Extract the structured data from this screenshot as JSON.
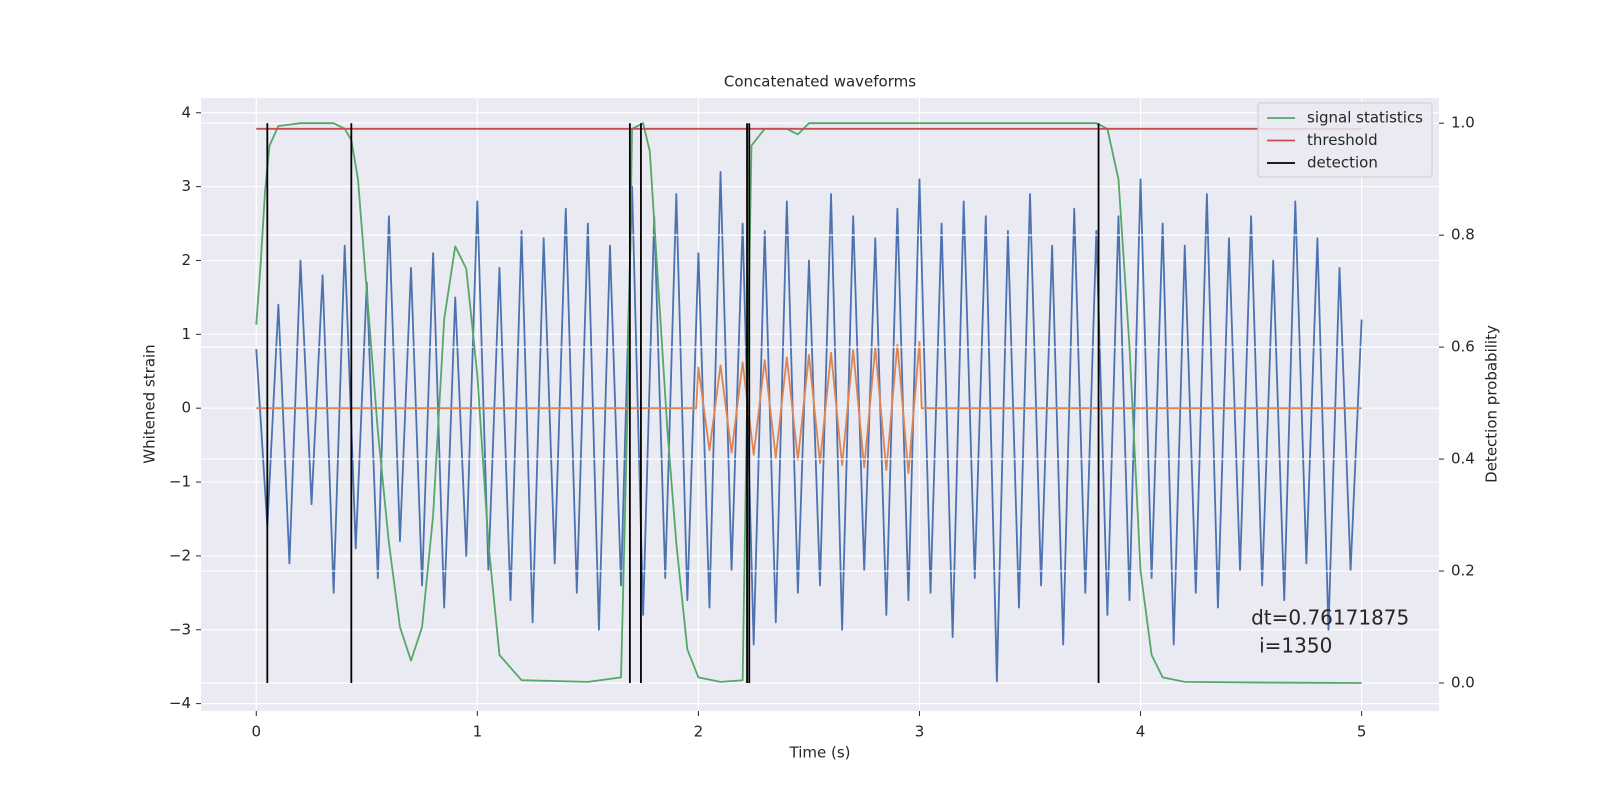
{
  "chart_data": {
    "type": "line",
    "title": "Concatenated waveforms",
    "xlabel": "Time (s)",
    "ylabel": "Whitened strain",
    "y2label": "Detection probability",
    "xlim": [
      -0.25,
      5.35
    ],
    "ylim": [
      -4.1,
      4.2
    ],
    "y2lim": [
      -0.05,
      1.045
    ],
    "xticks": [
      0,
      1,
      2,
      3,
      4,
      5
    ],
    "yticks": [
      {
        "value": -4,
        "label": "−4"
      },
      {
        "value": -3,
        "label": "−3"
      },
      {
        "value": -2,
        "label": "−2"
      },
      {
        "value": -1,
        "label": "−1"
      },
      0,
      1,
      2,
      3,
      4
    ],
    "y2ticks": [
      {
        "value": 0,
        "label": "0.0"
      },
      0.2,
      0.4,
      0.6,
      0.8,
      {
        "value": 1,
        "label": "1.0"
      }
    ],
    "grid": true,
    "legend": "upper right",
    "annotation": [
      "dt=0.76171875",
      "i=1350"
    ],
    "series": [
      {
        "color": "#4c72b0",
        "x": [
          0,
          0.05,
          0.1,
          0.15,
          0.2,
          0.25,
          0.3,
          0.35,
          0.4,
          0.45,
          0.5,
          0.55,
          0.6,
          0.65,
          0.7,
          0.75,
          0.8,
          0.85,
          0.9,
          0.95,
          1,
          1.05,
          1.1,
          1.15,
          1.2,
          1.25,
          1.3,
          1.35,
          1.4,
          1.45,
          1.5,
          1.55,
          1.6,
          1.65,
          1.7,
          1.75,
          1.8,
          1.85,
          1.9,
          1.95,
          2,
          2.05,
          2.1,
          2.15,
          2.2,
          2.25,
          2.3,
          2.35,
          2.4,
          2.45,
          2.5,
          2.55,
          2.6,
          2.65,
          2.7,
          2.75,
          2.8,
          2.85,
          2.9,
          2.95,
          3,
          3.05,
          3.1,
          3.15,
          3.2,
          3.25,
          3.3,
          3.35,
          3.4,
          3.45,
          3.5,
          3.55,
          3.6,
          3.65,
          3.7,
          3.75,
          3.8,
          3.85,
          3.9,
          3.95,
          4,
          4.05,
          4.1,
          4.15,
          4.2,
          4.25,
          4.3,
          4.35,
          4.4,
          4.45,
          4.5,
          4.55,
          4.6,
          4.65,
          4.7,
          4.75,
          4.8,
          4.85,
          4.9,
          4.95,
          5
        ],
        "values": [
          0.8,
          -1.6,
          1.4,
          -2.1,
          2.0,
          -1.3,
          1.8,
          -2.5,
          2.2,
          -1.9,
          1.7,
          -2.3,
          2.6,
          -1.8,
          1.9,
          -2.4,
          2.1,
          -2.7,
          1.5,
          -2.0,
          2.8,
          -2.2,
          1.9,
          -2.6,
          2.4,
          -2.9,
          2.3,
          -2.1,
          2.7,
          -2.5,
          2.5,
          -3.0,
          2.2,
          -2.4,
          3.0,
          -2.8,
          2.6,
          -2.3,
          2.9,
          -2.6,
          2.1,
          -2.7,
          3.2,
          -2.2,
          2.5,
          -3.2,
          2.4,
          -2.9,
          2.8,
          -2.5,
          2.0,
          -2.4,
          2.9,
          -3.0,
          2.6,
          -2.2,
          2.3,
          -2.8,
          2.7,
          -2.6,
          3.1,
          -2.5,
          2.5,
          -3.1,
          2.8,
          -2.3,
          2.6,
          -3.7,
          2.4,
          -2.7,
          2.9,
          -2.4,
          2.2,
          -3.2,
          2.7,
          -2.5,
          2.4,
          -2.8,
          2.6,
          -2.6,
          3.1,
          -2.3,
          2.5,
          -3.2,
          2.2,
          -2.5,
          2.9,
          -2.7,
          2.3,
          -2.2,
          2.6,
          -2.4,
          2.0,
          -2.6,
          2.8,
          -2.1,
          2.3,
          -3.0,
          1.9,
          -2.2,
          1.2
        ]
      },
      {
        "color": "#dd8452",
        "x": [
          0,
          1.99,
          2,
          2.05,
          2.1,
          2.15,
          2.2,
          2.25,
          2.3,
          2.35,
          2.4,
          2.45,
          2.5,
          2.55,
          2.6,
          2.65,
          2.7,
          2.75,
          2.8,
          2.85,
          2.9,
          2.95,
          3,
          3.01,
          5
        ],
        "values": [
          0,
          0,
          0.55,
          -0.57,
          0.58,
          -0.6,
          0.62,
          -0.63,
          0.65,
          -0.67,
          0.69,
          -0.7,
          0.72,
          -0.74,
          0.75,
          -0.77,
          0.79,
          -0.8,
          0.82,
          -0.84,
          0.86,
          -0.88,
          0.9,
          0,
          0
        ]
      },
      {
        "name": "signal statistics",
        "color": "#55a868",
        "axis": "y2",
        "x": [
          0,
          0.02,
          0.04,
          0.06,
          0.1,
          0.2,
          0.35,
          0.4,
          0.43,
          0.46,
          0.5,
          0.55,
          0.6,
          0.65,
          0.7,
          0.75,
          0.8,
          0.85,
          0.9,
          0.95,
          1.0,
          1.05,
          1.1,
          1.2,
          1.5,
          1.65,
          1.68,
          1.7,
          1.75,
          1.78,
          1.82,
          1.86,
          1.9,
          1.95,
          2.0,
          2.1,
          2.2,
          2.22,
          2.24,
          2.3,
          2.4,
          2.45,
          2.5,
          2.6,
          3.0,
          3.5,
          3.8,
          3.85,
          3.9,
          3.95,
          4.0,
          4.05,
          4.1,
          4.2,
          4.5,
          5.0
        ],
        "values": [
          0.64,
          0.75,
          0.88,
          0.96,
          0.995,
          1.0,
          1.0,
          0.99,
          0.97,
          0.9,
          0.7,
          0.45,
          0.25,
          0.1,
          0.04,
          0.1,
          0.3,
          0.65,
          0.78,
          0.74,
          0.55,
          0.25,
          0.05,
          0.005,
          0.002,
          0.01,
          0.5,
          0.99,
          1.0,
          0.95,
          0.7,
          0.45,
          0.25,
          0.06,
          0.01,
          0.002,
          0.005,
          0.5,
          0.96,
          0.99,
          0.99,
          0.98,
          1.0,
          1.0,
          1.0,
          1.0,
          1.0,
          0.99,
          0.9,
          0.6,
          0.2,
          0.05,
          0.01,
          0.002,
          0.001,
          0.0
        ]
      },
      {
        "name": "threshold",
        "color": "#c44e52",
        "axis": "y2",
        "x": [
          0,
          5
        ],
        "values": [
          0.99,
          0.99
        ]
      },
      {
        "name": "detection",
        "color": "#000000",
        "axis": "y2",
        "x": [
          0.05,
          0.43,
          1.69,
          1.74,
          2.22,
          2.23,
          3.81
        ],
        "ymin": 0,
        "ymax": 1
      }
    ]
  }
}
